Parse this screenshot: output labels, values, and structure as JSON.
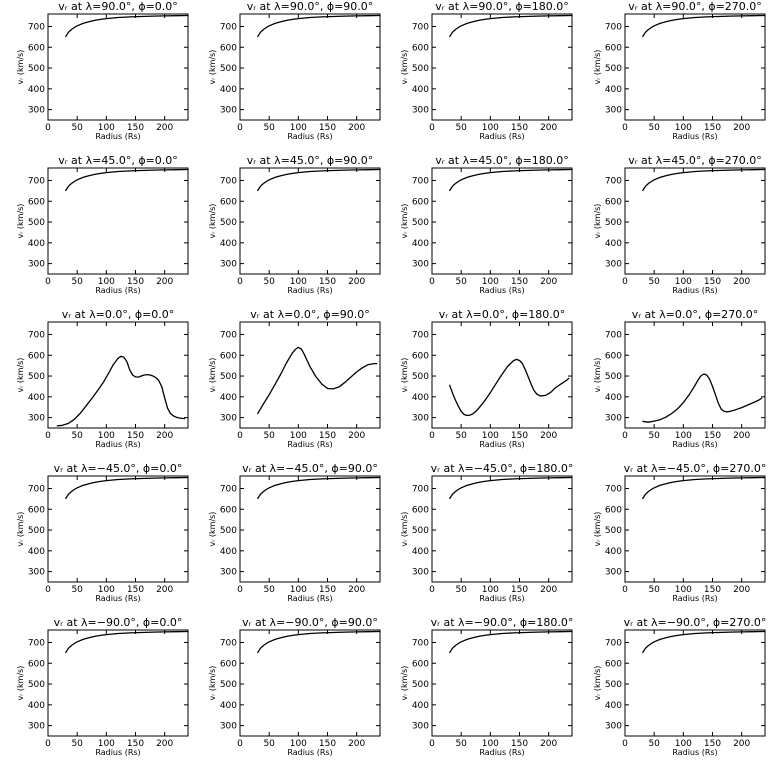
{
  "chart_data": {
    "type": "line",
    "layout": {
      "rows": 5,
      "cols": 4
    },
    "xlabel": "Radius (Rs)",
    "ylabel": "vᵣ (km/s)",
    "xlim": [
      0,
      240
    ],
    "ylim": [
      250,
      760
    ],
    "xticks": [
      0,
      50,
      100,
      150,
      200
    ],
    "xtick_labels": [
      "0",
      "50",
      "100",
      "150",
      "200"
    ],
    "yticks": [
      300,
      400,
      500,
      600,
      700
    ],
    "ytick_labels": [
      "300",
      "400",
      "500",
      "600",
      "700"
    ],
    "grid": false,
    "panels": [
      {
        "title": "vᵣ at λ=90.0°, ϕ=0.0°",
        "profile": "flat"
      },
      {
        "title": "vᵣ at λ=90.0°, ϕ=90.0°",
        "profile": "flat"
      },
      {
        "title": "vᵣ at λ=90.0°, ϕ=180.0°",
        "profile": "flat"
      },
      {
        "title": "vᵣ at λ=90.0°, ϕ=270.0°",
        "profile": "flat"
      },
      {
        "title": "vᵣ at λ=45.0°, ϕ=0.0°",
        "profile": "flat"
      },
      {
        "title": "vᵣ at λ=45.0°, ϕ=90.0°",
        "profile": "flat"
      },
      {
        "title": "vᵣ at λ=45.0°, ϕ=180.0°",
        "profile": "flat"
      },
      {
        "title": "vᵣ at λ=45.0°, ϕ=270.0°",
        "profile": "flat"
      },
      {
        "title": "vᵣ at λ=0.0°, ϕ=0.0°",
        "profile": "eq0"
      },
      {
        "title": "vᵣ at λ=0.0°, ϕ=90.0°",
        "profile": "eq90"
      },
      {
        "title": "vᵣ at λ=0.0°, ϕ=180.0°",
        "profile": "eq180"
      },
      {
        "title": "vᵣ at λ=0.0°, ϕ=270.0°",
        "profile": "eq270"
      },
      {
        "title": "vᵣ at λ=−45.0°, ϕ=0.0°",
        "profile": "flat"
      },
      {
        "title": "vᵣ at λ=−45.0°, ϕ=90.0°",
        "profile": "flat"
      },
      {
        "title": "vᵣ at λ=−45.0°, ϕ=180.0°",
        "profile": "flat"
      },
      {
        "title": "vᵣ at λ=−45.0°, ϕ=270.0°",
        "profile": "flat"
      },
      {
        "title": "vᵣ at λ=−90.0°, ϕ=0.0°",
        "profile": "flat"
      },
      {
        "title": "vᵣ at λ=−90.0°, ϕ=90.0°",
        "profile": "flat"
      },
      {
        "title": "vᵣ at λ=−90.0°, ϕ=180.0°",
        "profile": "flat"
      },
      {
        "title": "vᵣ at λ=−90.0°, ϕ=270.0°",
        "profile": "flat"
      }
    ],
    "profiles": {
      "flat": {
        "x": [
          30,
          35,
          40,
          45,
          50,
          60,
          70,
          80,
          90,
          100,
          120,
          140,
          160,
          180,
          200,
          220,
          240
        ],
        "y": [
          650,
          672,
          685,
          695,
          703,
          715,
          723,
          729,
          734,
          738,
          743,
          746,
          748,
          750,
          751,
          752,
          753
        ]
      },
      "eq0": {
        "x": [
          15,
          25,
          35,
          45,
          55,
          65,
          75,
          85,
          95,
          105,
          112,
          120,
          125,
          130,
          135,
          140,
          145,
          150,
          155,
          160,
          165,
          170,
          175,
          180,
          185,
          190,
          195,
          200,
          205,
          210,
          215,
          220,
          225,
          230,
          235
        ],
        "y": [
          260,
          263,
          272,
          292,
          320,
          355,
          392,
          430,
          470,
          520,
          555,
          585,
          595,
          590,
          570,
          530,
          505,
          496,
          495,
          500,
          505,
          507,
          505,
          500,
          492,
          478,
          448,
          395,
          345,
          320,
          308,
          302,
          298,
          296,
          295
        ]
      },
      "eq90": {
        "x": [
          30,
          40,
          50,
          60,
          70,
          80,
          90,
          95,
          100,
          105,
          110,
          115,
          120,
          130,
          140,
          150,
          160,
          170,
          180,
          190,
          200,
          210,
          220,
          230,
          235
        ],
        "y": [
          318,
          365,
          410,
          460,
          510,
          565,
          612,
          628,
          638,
          630,
          605,
          575,
          545,
          498,
          462,
          440,
          438,
          448,
          470,
          495,
          520,
          540,
          555,
          560,
          560
        ]
      },
      "eq180": {
        "x": [
          30,
          35,
          40,
          45,
          50,
          55,
          60,
          65,
          70,
          75,
          80,
          90,
          100,
          110,
          120,
          130,
          140,
          145,
          150,
          155,
          160,
          165,
          170,
          175,
          180,
          185,
          190,
          195,
          200,
          205,
          210,
          220,
          230,
          235
        ],
        "y": [
          458,
          420,
          385,
          355,
          330,
          315,
          310,
          312,
          318,
          330,
          345,
          380,
          420,
          465,
          508,
          548,
          575,
          580,
          575,
          560,
          530,
          495,
          460,
          430,
          412,
          405,
          405,
          408,
          415,
          425,
          440,
          460,
          478,
          490
        ]
      },
      "eq270": {
        "x": [
          30,
          40,
          50,
          60,
          70,
          80,
          90,
          100,
          110,
          120,
          125,
          130,
          135,
          140,
          145,
          150,
          155,
          160,
          165,
          170,
          175,
          180,
          190,
          200,
          210,
          220,
          230,
          235
        ],
        "y": [
          282,
          278,
          283,
          290,
          302,
          320,
          342,
          372,
          410,
          455,
          480,
          500,
          510,
          505,
          485,
          450,
          410,
          370,
          340,
          330,
          328,
          330,
          338,
          348,
          360,
          372,
          385,
          395
        ]
      }
    }
  }
}
